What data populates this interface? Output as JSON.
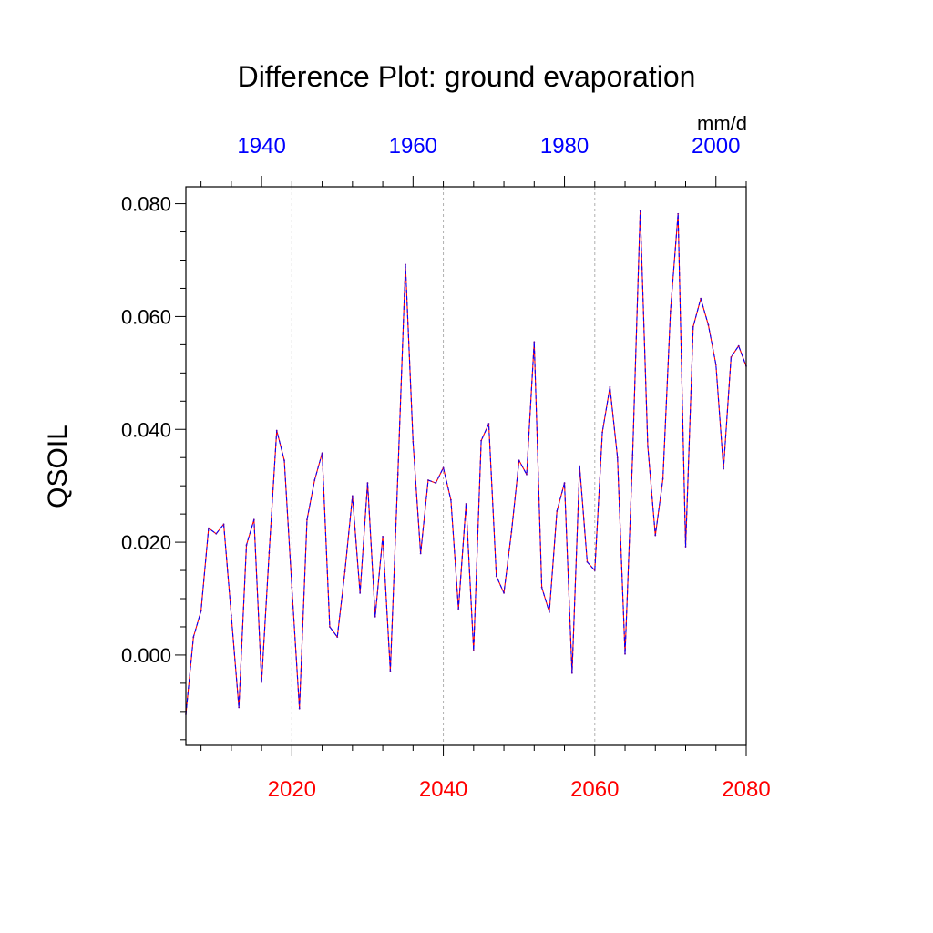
{
  "chart_data": {
    "type": "line",
    "title": "Difference Plot: ground evaporation",
    "ylabel": "QSOIL",
    "units": "mm/d",
    "ylim": [
      -0.016,
      0.083
    ],
    "y_ticks": [
      "0.000",
      "0.020",
      "0.040",
      "0.060",
      "0.080"
    ],
    "y_tick_values": [
      0.0,
      0.02,
      0.04,
      0.06,
      0.08
    ],
    "bottom_axis": {
      "color": "#ff0000",
      "range": [
        2006,
        2080
      ],
      "ticks": [
        2020,
        2040,
        2060,
        2080
      ],
      "tick_labels": [
        "2020",
        "2040",
        "2060",
        "2080"
      ]
    },
    "top_axis": {
      "color": "#0000ff",
      "range": [
        1930,
        2004
      ],
      "ticks": [
        1940,
        1960,
        1980,
        2000
      ],
      "tick_labels": [
        "1940",
        "1960",
        "1980",
        "2000"
      ]
    },
    "grid": "dotted vertical at bottom-axis major ticks",
    "series": [
      {
        "name": "difference",
        "line_colors": [
          "#ff0000",
          "#0000ff"
        ],
        "x": [
          2006,
          2007,
          2008,
          2009,
          2010,
          2011,
          2012,
          2013,
          2014,
          2015,
          2016,
          2017,
          2018,
          2019,
          2020,
          2021,
          2022,
          2023,
          2024,
          2025,
          2026,
          2027,
          2028,
          2029,
          2030,
          2031,
          2032,
          2033,
          2034,
          2035,
          2036,
          2037,
          2038,
          2039,
          2040,
          2041,
          2042,
          2043,
          2044,
          2045,
          2046,
          2047,
          2048,
          2049,
          2050,
          2051,
          2052,
          2053,
          2054,
          2055,
          2056,
          2057,
          2058,
          2059,
          2060,
          2061,
          2062,
          2063,
          2064,
          2065,
          2066,
          2067,
          2068,
          2069,
          2070,
          2071,
          2072,
          2073,
          2074,
          2075,
          2076,
          2077,
          2078,
          2079,
          2080
        ],
        "values": [
          -0.0105,
          0.0032,
          0.0078,
          0.0225,
          0.0215,
          0.0232,
          0.007,
          -0.0093,
          0.0195,
          0.024,
          -0.0048,
          0.0182,
          0.0398,
          0.0345,
          0.012,
          -0.0095,
          0.024,
          0.031,
          0.0358,
          0.005,
          0.0032,
          0.0148,
          0.0282,
          0.011,
          0.0305,
          0.0068,
          0.021,
          -0.0028,
          0.032,
          0.0692,
          0.0378,
          0.018,
          0.031,
          0.0305,
          0.0332,
          0.0275,
          0.0082,
          0.0268,
          0.0008,
          0.038,
          0.041,
          0.014,
          0.011,
          0.0218,
          0.0345,
          0.032,
          0.0555,
          0.012,
          0.0076,
          0.0255,
          0.0305,
          -0.0032,
          0.0335,
          0.0165,
          0.015,
          0.0395,
          0.0475,
          0.035,
          0.0002,
          0.0355,
          0.0788,
          0.037,
          0.0212,
          0.0312,
          0.061,
          0.0782,
          0.0192,
          0.0582,
          0.0632,
          0.0585,
          0.0515,
          0.033,
          0.0528,
          0.0548,
          0.0512
        ]
      }
    ]
  }
}
